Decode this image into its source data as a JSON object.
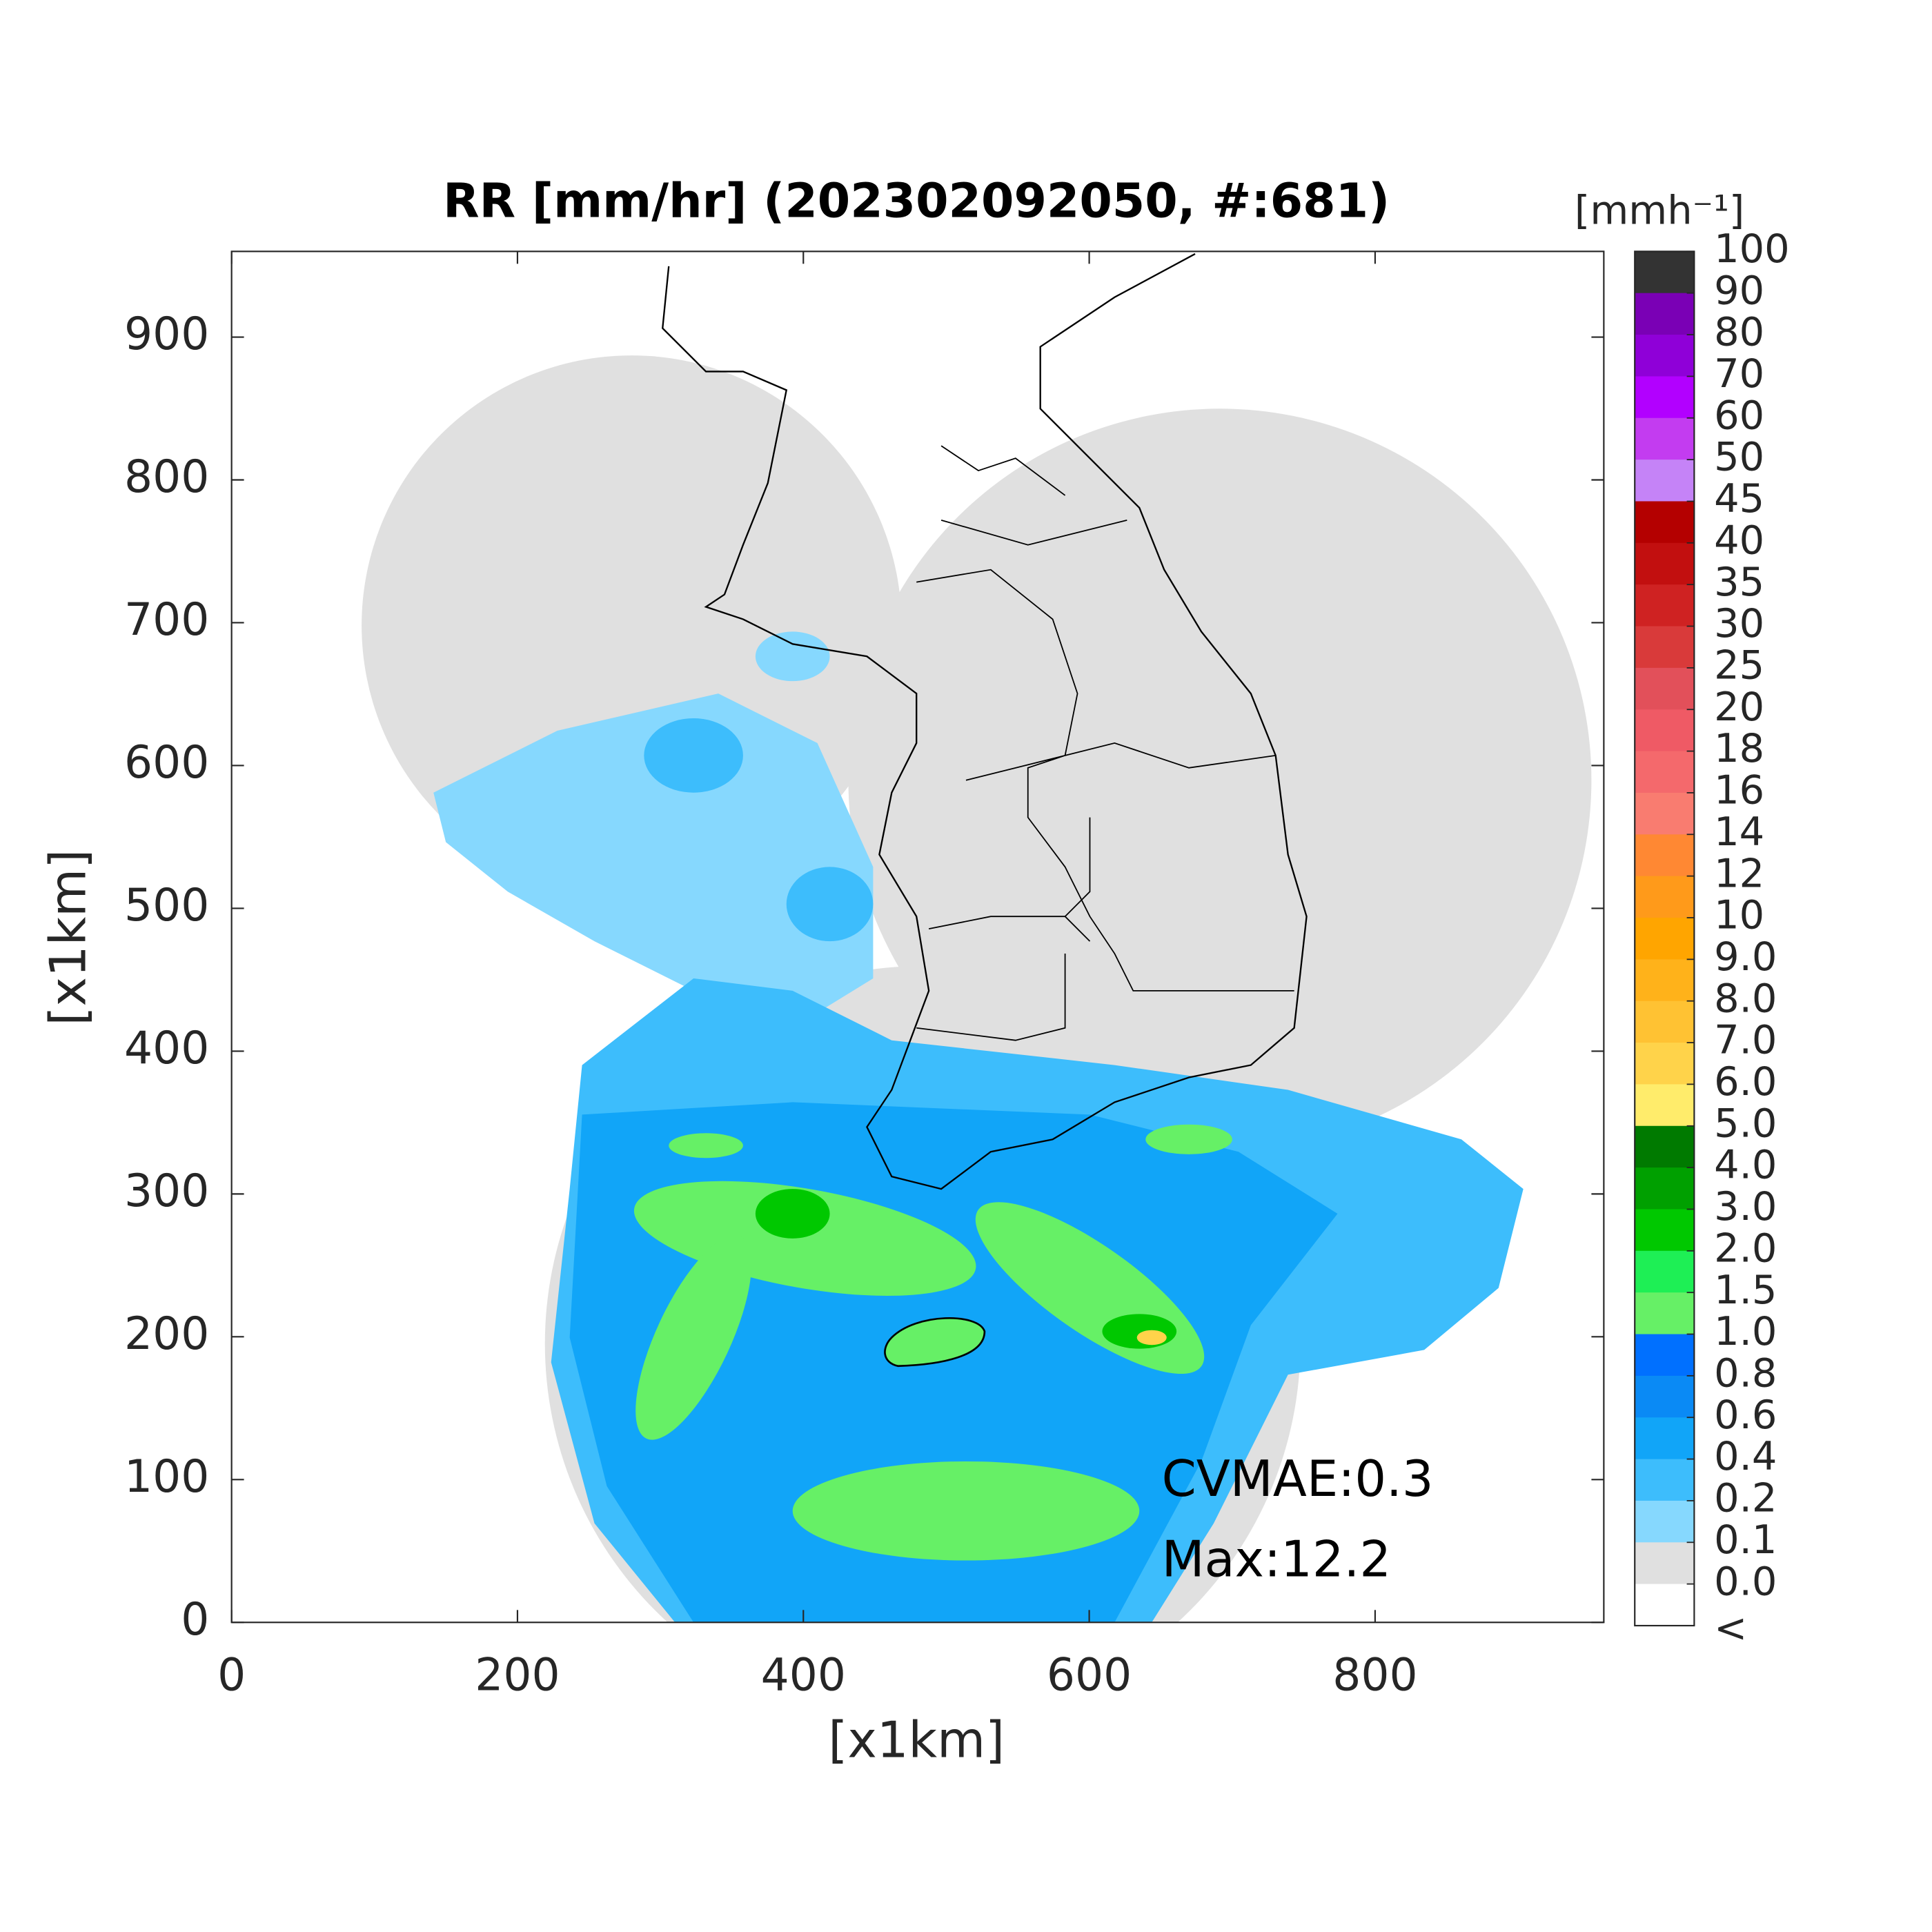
{
  "chart_data": {
    "type": "heatmap",
    "title": "RR [mm/hr] (202302092050, #:681)",
    "xlabel": "[x1km]",
    "ylabel": "[x1km]",
    "xlim": [
      0,
      960
    ],
    "ylim": [
      0,
      960
    ],
    "xticks": [
      0,
      200,
      400,
      600,
      800
    ],
    "yticks": [
      0,
      100,
      200,
      300,
      400,
      500,
      600,
      700,
      800,
      900
    ],
    "annotations": [
      "CVMAE:0.3",
      "Max:12.2"
    ],
    "colorbar": {
      "label": "[mmh⁻¹]",
      "ticks": [
        100,
        90,
        80,
        70,
        60,
        50,
        45,
        40,
        35,
        30,
        25,
        20,
        18,
        16,
        14,
        12,
        10,
        {
          "value": 9,
          "label": "9.0"
        },
        {
          "value": 8,
          "label": "8.0"
        },
        {
          "value": 7,
          "label": "7.0"
        },
        {
          "value": 6,
          "label": "6.0"
        },
        {
          "value": 5,
          "label": "5.0"
        },
        {
          "value": 4,
          "label": "4.0"
        },
        {
          "value": 3,
          "label": "3.0"
        },
        {
          "value": 2,
          "label": "2.0"
        },
        1.5,
        {
          "value": 1,
          "label": "1.0"
        },
        0.8,
        0.6,
        0.4,
        0.2,
        0.1,
        {
          "value": 0,
          "label": "0.0"
        }
      ],
      "colors": [
        "#333333",
        "#7a00b5",
        "#8f00d8",
        "#b200ff",
        "#c33cf0",
        "#c583f7",
        "#b40000",
        "#c20f0f",
        "#cf2222",
        "#d93a3a",
        "#e2505a",
        "#ef5a65",
        "#f4696c",
        "#f97c70",
        "#ff8833",
        "#ff9a1a",
        "#ffa500",
        "#ffb21a",
        "#ffc233",
        "#ffd34a",
        "#ffec6b",
        "#007a00",
        "#00a000",
        "#00c800",
        "#1eef55",
        "#66f066",
        "#0070ff",
        "#0a8af5",
        "#11a5f8",
        "#3dbdfc",
        "#86d8fe",
        "#e0e0e0"
      ],
      "under_label": "<",
      "under_color": "#ffffff"
    }
  }
}
